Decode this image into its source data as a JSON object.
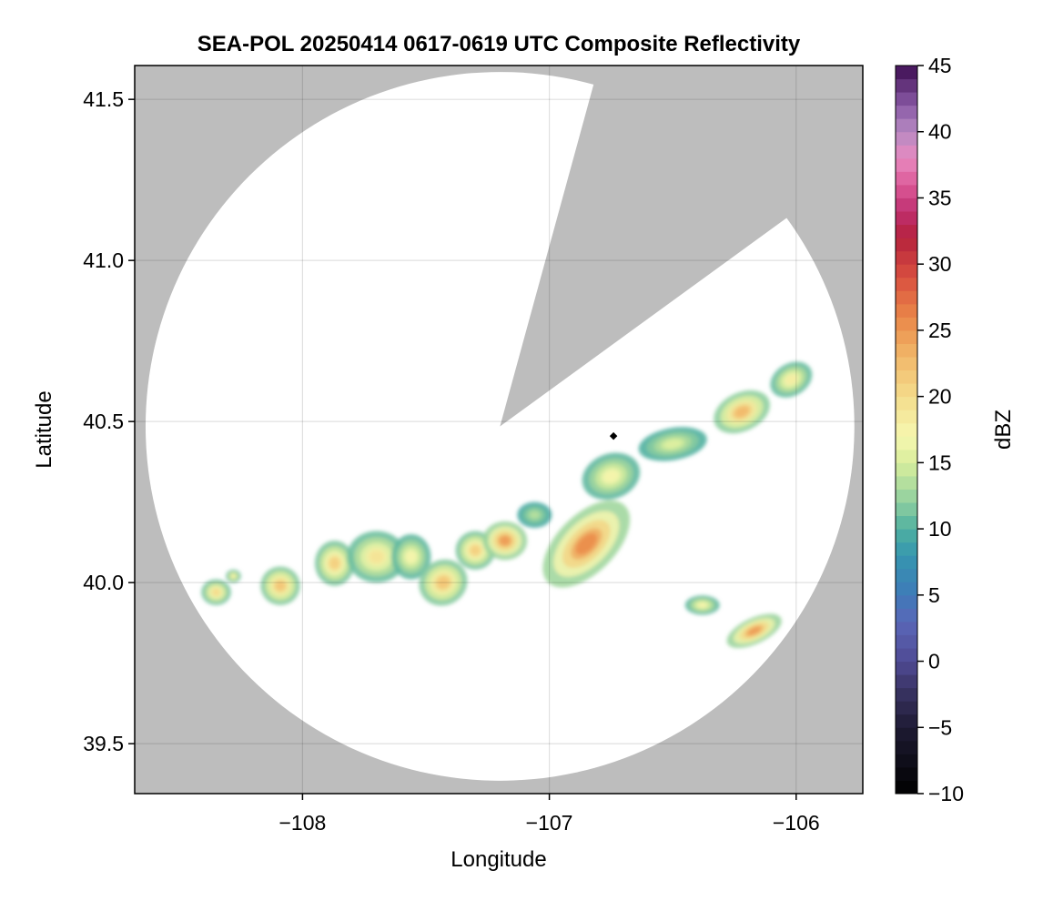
{
  "chart_data": {
    "type": "heatmap",
    "title": "SEA-POL 20250414 0617-0619 UTC Composite Reflectivity",
    "xlabel": "Longitude",
    "ylabel": "Latitude",
    "xlim": [
      -108.68,
      -105.73
    ],
    "ylim": [
      39.345,
      41.605
    ],
    "x_ticks": [
      -108,
      -107,
      -106
    ],
    "x_tick_labels": [
      "−108",
      "−107",
      "−106"
    ],
    "y_ticks": [
      39.5,
      40.0,
      40.5,
      41.0,
      41.5
    ],
    "y_tick_labels": [
      "39.5",
      "40.0",
      "40.5",
      "41.0",
      "41.5"
    ],
    "grid": true,
    "background_color": "#bdbdbd",
    "coverage_color": "#ffffff",
    "radar_site": {
      "lon": -106.74,
      "lat": 40.455
    },
    "coverage": {
      "center_lon": -107.2,
      "center_lat": 40.485,
      "radius_deg_lat": 1.1,
      "blocked_sector": {
        "lon1": -106.83,
        "lat1": 41.52,
        "lon2": -106.06,
        "lat2": 41.12
      }
    },
    "colorbar": {
      "label": "dBZ",
      "min": -10,
      "max": 45,
      "ticks": [
        -10,
        -5,
        0,
        5,
        10,
        15,
        20,
        25,
        30,
        35,
        40,
        45
      ],
      "tick_labels": [
        "−10",
        "−5",
        "0",
        "5",
        "10",
        "15",
        "20",
        "25",
        "30",
        "35",
        "40",
        "45"
      ],
      "stops": [
        [
          -10,
          "#000000"
        ],
        [
          -5,
          "#1e1b33"
        ],
        [
          -2,
          "#3b3566"
        ],
        [
          0,
          "#4f4a94"
        ],
        [
          3,
          "#5a67b8"
        ],
        [
          5,
          "#3f7ab8"
        ],
        [
          8,
          "#3596b0"
        ],
        [
          10,
          "#4fb0a0"
        ],
        [
          12,
          "#8fcfa0"
        ],
        [
          15,
          "#d8ee9c"
        ],
        [
          17,
          "#f6f7b0"
        ],
        [
          20,
          "#f4dc8c"
        ],
        [
          23,
          "#f1b86a"
        ],
        [
          26,
          "#ea8748"
        ],
        [
          29,
          "#d95040"
        ],
        [
          32,
          "#b5223c"
        ],
        [
          34,
          "#bf2f70"
        ],
        [
          36,
          "#dc5a98"
        ],
        [
          38,
          "#e88ac0"
        ],
        [
          40,
          "#b78ac2"
        ],
        [
          42,
          "#8a5aa6"
        ],
        [
          45,
          "#3d0d52"
        ]
      ]
    },
    "echoes": [
      {
        "lon": -108.35,
        "lat": 39.97,
        "rx": 0.06,
        "ry": 0.04,
        "peak": 21
      },
      {
        "lon": -108.28,
        "lat": 40.02,
        "rx": 0.03,
        "ry": 0.02,
        "peak": 19
      },
      {
        "lon": -108.09,
        "lat": 39.99,
        "rx": 0.08,
        "ry": 0.06,
        "peak": 23
      },
      {
        "lon": -107.87,
        "lat": 40.06,
        "rx": 0.08,
        "ry": 0.07,
        "peak": 22
      },
      {
        "lon": -107.7,
        "lat": 40.08,
        "rx": 0.12,
        "ry": 0.08,
        "peak": 20
      },
      {
        "lon": -107.56,
        "lat": 40.08,
        "rx": 0.08,
        "ry": 0.07,
        "peak": 18
      },
      {
        "lon": -107.43,
        "lat": 40.0,
        "rx": 0.1,
        "ry": 0.07,
        "peak": 23,
        "rot": -30
      },
      {
        "lon": -107.3,
        "lat": 40.1,
        "rx": 0.08,
        "ry": 0.06,
        "peak": 22
      },
      {
        "lon": -107.18,
        "lat": 40.13,
        "rx": 0.09,
        "ry": 0.06,
        "peak": 26
      },
      {
        "lon": -107.06,
        "lat": 40.21,
        "rx": 0.07,
        "ry": 0.04,
        "peak": 14
      },
      {
        "lon": -106.85,
        "lat": 40.12,
        "rx": 0.22,
        "ry": 0.09,
        "peak": 27,
        "rot": -45
      },
      {
        "lon": -106.75,
        "lat": 40.33,
        "rx": 0.12,
        "ry": 0.07,
        "peak": 18,
        "rot": -20
      },
      {
        "lon": -106.5,
        "lat": 40.43,
        "rx": 0.14,
        "ry": 0.05,
        "peak": 16,
        "rot": -10
      },
      {
        "lon": -106.22,
        "lat": 40.53,
        "rx": 0.12,
        "ry": 0.06,
        "peak": 24,
        "rot": -25
      },
      {
        "lon": -106.02,
        "lat": 40.63,
        "rx": 0.09,
        "ry": 0.05,
        "peak": 19,
        "rot": -30
      },
      {
        "lon": -106.38,
        "lat": 39.93,
        "rx": 0.07,
        "ry": 0.03,
        "peak": 18
      },
      {
        "lon": -106.17,
        "lat": 39.85,
        "rx": 0.12,
        "ry": 0.04,
        "peak": 26,
        "rot": -25
      }
    ]
  }
}
